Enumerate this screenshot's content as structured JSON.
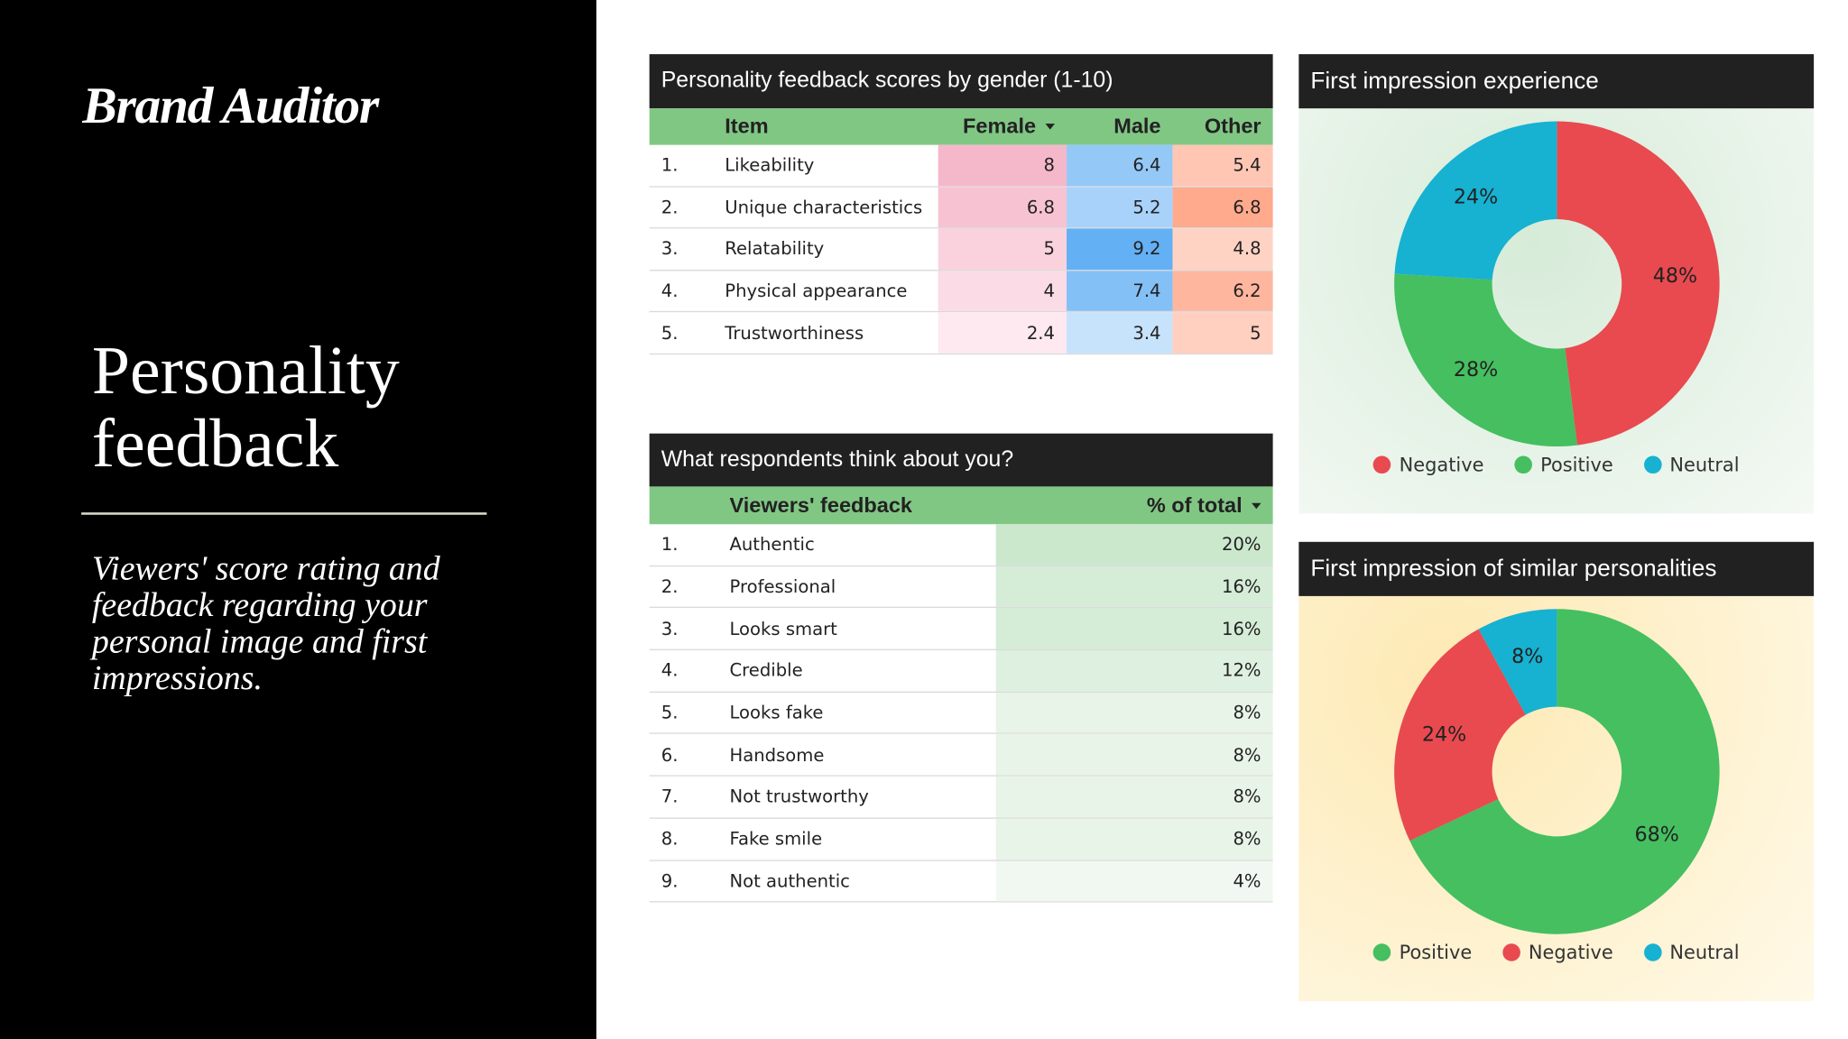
{
  "header": {
    "brand": "Brand Auditor",
    "title": "Personality feedback",
    "description": "Viewers' score rating and feedback regarding your personal image and first impressions."
  },
  "scores_table": {
    "title": "Personality feedback scores by gender (1-10)",
    "columns": [
      "Item",
      "Female",
      "Male",
      "Other"
    ],
    "rows": [
      {
        "index": "1.",
        "item": "Likeability",
        "scores": [
          8,
          6.4,
          5.4
        ]
      },
      {
        "index": "2.",
        "item": "Unique characteristics",
        "scores": [
          6.8,
          5.2,
          6.8
        ]
      },
      {
        "index": "3.",
        "item": "Relatability",
        "scores": [
          5,
          9.2,
          4.8
        ]
      },
      {
        "index": "4.",
        "item": "Physical appearance",
        "scores": [
          4,
          7.4,
          6.2
        ]
      },
      {
        "index": "5.",
        "item": "Trustworthiness",
        "scores": [
          2.4,
          3.4,
          5
        ]
      }
    ]
  },
  "feedback_table": {
    "title": "What respondents think about you?",
    "columns": [
      "Viewers' feedback",
      "% of total"
    ],
    "rows": [
      {
        "index": "1.",
        "feedback": "Authentic",
        "share": "20%"
      },
      {
        "index": "2.",
        "feedback": "Professional",
        "share": "16%"
      },
      {
        "index": "3.",
        "feedback": "Looks smart",
        "share": "16%"
      },
      {
        "index": "4.",
        "feedback": "Credible",
        "share": "12%"
      },
      {
        "index": "5.",
        "feedback": "Looks fake",
        "share": "8%"
      },
      {
        "index": "6.",
        "feedback": "Handsome",
        "share": "8%"
      },
      {
        "index": "7.",
        "feedback": "Not trustworthy",
        "share": "8%"
      },
      {
        "index": "8.",
        "feedback": "Fake smile",
        "share": "8%"
      },
      {
        "index": "9.",
        "feedback": "Not authentic",
        "share": "4%"
      }
    ]
  },
  "chart_data": [
    {
      "type": "pie",
      "title": "First impression experience",
      "categories": [
        "Negative",
        "Positive",
        "Neutral"
      ],
      "values": [
        48,
        28,
        24
      ],
      "value_labels": [
        "48%",
        "28%",
        "24%"
      ],
      "colors": [
        "#e84a4f",
        "#45bf60",
        "#17b1d1"
      ],
      "donut": true
    },
    {
      "type": "pie",
      "title": "First impression of similar personalities",
      "categories": [
        "Positive",
        "Negative",
        "Neutral"
      ],
      "values": [
        68,
        24,
        8
      ],
      "value_labels": [
        "68%",
        "24%",
        "8%"
      ],
      "colors": [
        "#45bf60",
        "#e84a4f",
        "#17b1d1"
      ],
      "donut": true
    }
  ]
}
